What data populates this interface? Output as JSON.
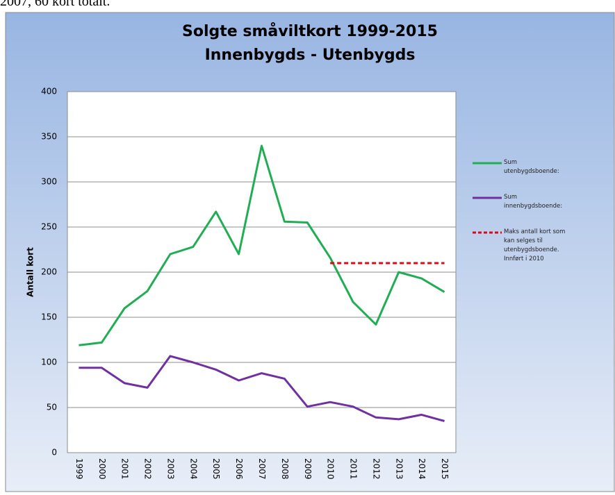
{
  "page_text": "2007, 60 kort totalt.",
  "chart_data": {
    "type": "line",
    "title": "Solgte småviltkort 1999-2015",
    "subtitle": "Innenbygds - Utenbygds",
    "y_label": "Antall kort",
    "categories": [
      "1999",
      "2000",
      "2001",
      "2002",
      "2003",
      "2004",
      "2005",
      "2006",
      "2007",
      "2008",
      "2009",
      "2010",
      "2011",
      "2012",
      "2013",
      "2014",
      "2015"
    ],
    "series": [
      {
        "name": "Sum utenbygdsboende:",
        "color": "#21ad54",
        "dashed": false,
        "values": [
          119,
          122,
          160,
          179,
          220,
          228,
          267,
          220,
          340,
          256,
          255,
          216,
          167,
          142,
          200,
          193,
          178
        ]
      },
      {
        "name": "Sum innenbygdsboende:",
        "color": "#7030a0",
        "dashed": false,
        "values": [
          94,
          94,
          77,
          72,
          107,
          100,
          92,
          80,
          88,
          82,
          51,
          56,
          51,
          39,
          37,
          42,
          35
        ]
      },
      {
        "name": "Maks antall kort som kan selges til utenbygdsboende. Innført i 2010",
        "color": "#e30613",
        "dashed": true,
        "values": [
          null,
          null,
          null,
          null,
          null,
          null,
          null,
          null,
          null,
          null,
          null,
          210,
          210,
          210,
          210,
          210,
          210
        ]
      }
    ],
    "ylim": [
      0,
      400
    ],
    "yticks": [
      0,
      50,
      100,
      150,
      200,
      250,
      300,
      350,
      400
    ],
    "grid": true
  }
}
